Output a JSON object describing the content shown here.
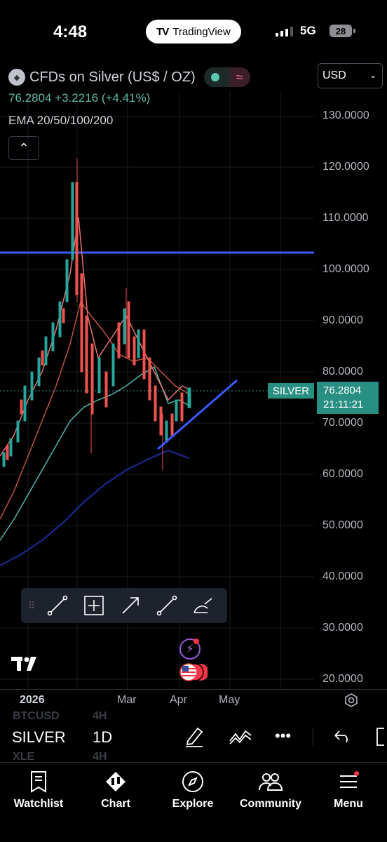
{
  "status_bar": {
    "time": "4:48",
    "app_pill": "TradingView",
    "network": "5G",
    "battery": "28"
  },
  "header": {
    "symbol_title": "CFDs on Silver (US$ / OZ)",
    "price_change": "76.2804  +3.2216 (+4.41%)",
    "indicator": "EMA 20/50/100/200",
    "currency": "USD"
  },
  "price_axis": {
    "labels": [
      "130.0000",
      "120.0000",
      "110.0000",
      "100.0000",
      "90.0000",
      "80.0000",
      "70.0000",
      "60.0000",
      "50.0000",
      "40.0000",
      "30.0000",
      "20.0000"
    ]
  },
  "price_tag": {
    "symbol": "SILVER",
    "price": "76.2804",
    "countdown": "21:11:21"
  },
  "time_axis": {
    "labels": [
      "2026",
      "Mar",
      "Apr",
      "May"
    ]
  },
  "symbol_bar": {
    "symbol": "SILVER",
    "interval": "1D",
    "ghost_above_symbol": "BTCUSD",
    "ghost_above_interval": "4H",
    "ghost_below_symbol": "XLE",
    "ghost_below_interval": "4H"
  },
  "tabs": [
    {
      "label": "Watchlist",
      "icon": "watchlist-icon"
    },
    {
      "label": "Chart",
      "icon": "chart-icon"
    },
    {
      "label": "Explore",
      "icon": "compass-icon"
    },
    {
      "label": "Community",
      "icon": "community-icon"
    },
    {
      "label": "Menu",
      "icon": "hamburger-icon"
    }
  ],
  "colors": {
    "up": "#26a69a",
    "down": "#ef5350",
    "trend_line": "#3d5afe",
    "ema20": "#e57373",
    "ema50": "#c0533f",
    "ema100": "#4db6ac",
    "ema200": "#1a237e",
    "price_tag": "#2a8f83"
  }
}
